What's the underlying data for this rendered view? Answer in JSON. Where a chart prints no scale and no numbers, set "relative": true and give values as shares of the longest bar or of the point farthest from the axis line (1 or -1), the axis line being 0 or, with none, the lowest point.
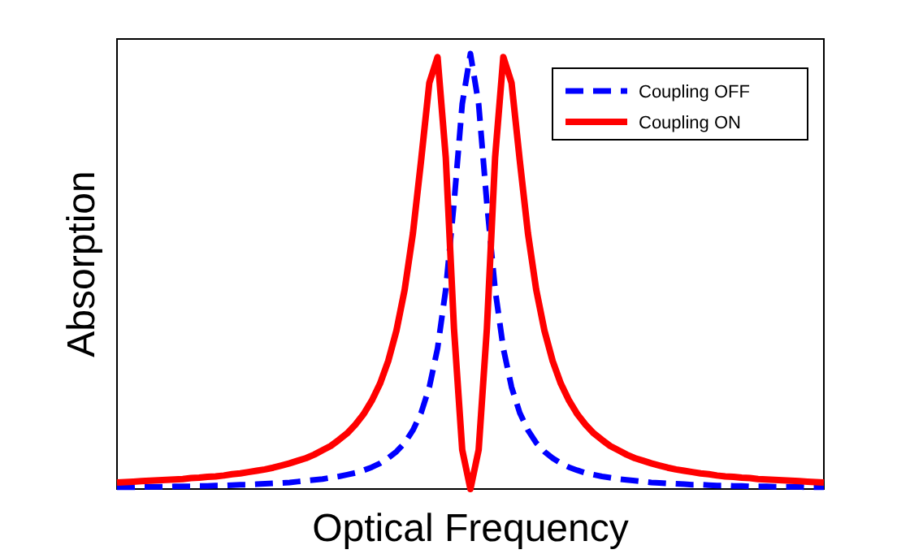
{
  "chart_data": {
    "type": "line",
    "relative": true,
    "xlabel": "Optical Frequency",
    "ylabel": "Absorption",
    "legend": "top right",
    "categories": [
      null,
      null,
      null,
      null,
      null,
      null,
      null,
      null,
      null,
      null,
      null,
      null,
      null,
      null,
      null,
      null,
      null,
      null,
      null,
      null,
      null,
      null,
      null,
      null,
      null,
      null,
      null,
      null,
      null,
      null,
      null,
      null,
      null,
      null,
      null,
      null,
      null,
      null,
      null,
      null,
      null,
      null,
      null,
      null,
      null,
      null,
      null,
      null,
      null,
      null,
      null,
      null,
      null,
      null,
      null,
      null,
      null,
      null,
      null,
      null,
      null,
      null,
      null,
      null,
      null,
      null,
      null,
      null,
      null,
      null,
      null,
      null,
      null,
      null,
      null,
      null,
      null,
      null,
      null,
      null,
      null,
      null,
      null,
      null,
      null,
      null,
      null
    ],
    "series": [
      {
        "name": "Coupling OFF",
        "color": "#0000ff",
        "line_style": "dashed",
        "values": [
          0.004,
          0.004,
          0.004,
          0.005,
          0.005,
          0.005,
          0.005,
          0.006,
          0.006,
          0.006,
          0.007,
          0.007,
          0.008,
          0.008,
          0.009,
          0.01,
          0.01,
          0.011,
          0.012,
          0.013,
          0.014,
          0.015,
          0.017,
          0.019,
          0.021,
          0.023,
          0.026,
          0.029,
          0.033,
          0.037,
          0.043,
          0.05,
          0.059,
          0.071,
          0.086,
          0.106,
          0.135,
          0.175,
          0.234,
          0.323,
          0.459,
          0.656,
          0.884,
          1,
          0.884,
          0.656,
          0.459,
          0.323,
          0.234,
          0.175,
          0.135,
          0.106,
          0.086,
          0.071,
          0.059,
          0.05,
          0.043,
          0.037,
          0.033,
          0.029,
          0.026,
          0.023,
          0.021,
          0.019,
          0.017,
          0.015,
          0.014,
          0.013,
          0.012,
          0.011,
          0.01,
          0.01,
          0.009,
          0.008,
          0.008,
          0.007,
          0.007,
          0.006,
          0.006,
          0.006,
          0.005,
          0.005,
          0.005,
          0.005,
          0.004,
          0.004,
          0.004
        ]
      },
      {
        "name": "Coupling ON",
        "color": "#ff0000",
        "line_style": "solid",
        "values": [
          0.015,
          0.016,
          0.017,
          0.018,
          0.019,
          0.02,
          0.021,
          0.022,
          0.023,
          0.025,
          0.026,
          0.028,
          0.029,
          0.031,
          0.034,
          0.036,
          0.039,
          0.042,
          0.045,
          0.049,
          0.054,
          0.059,
          0.065,
          0.071,
          0.079,
          0.089,
          0.099,
          0.113,
          0.128,
          0.148,
          0.172,
          0.203,
          0.242,
          0.294,
          0.364,
          0.458,
          0.587,
          0.755,
          0.933,
          0.992,
          0.761,
          0.368,
          0.09,
          0,
          0.09,
          0.368,
          0.761,
          0.992,
          0.933,
          0.755,
          0.587,
          0.458,
          0.364,
          0.294,
          0.242,
          0.203,
          0.172,
          0.148,
          0.128,
          0.113,
          0.099,
          0.089,
          0.079,
          0.071,
          0.065,
          0.059,
          0.054,
          0.049,
          0.045,
          0.042,
          0.039,
          0.036,
          0.034,
          0.031,
          0.029,
          0.028,
          0.026,
          0.025,
          0.023,
          0.022,
          0.021,
          0.02,
          0.019,
          0.018,
          0.017,
          0.016,
          0.015
        ]
      }
    ]
  }
}
